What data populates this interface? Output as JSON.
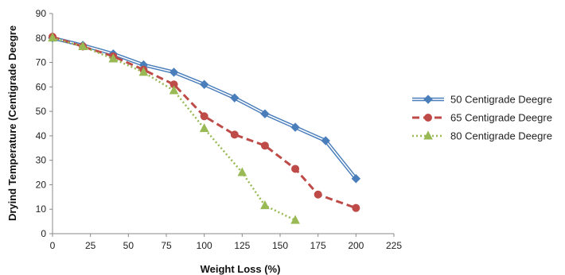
{
  "chart_data": {
    "type": "line",
    "title": "",
    "xlabel": "Weight Loss (%)",
    "ylabel": "Dryind Temperature (Centigrade Deegre",
    "xlim": [
      0,
      225
    ],
    "ylim": [
      0,
      90
    ],
    "xticks": [
      "0",
      "25",
      "50",
      "75",
      "100",
      "125",
      "150",
      "175",
      "200",
      "225"
    ],
    "yticks": [
      "0",
      "10",
      "20",
      "30",
      "40",
      "50",
      "60",
      "70",
      "80",
      "90"
    ],
    "grid": false,
    "legend_position": "right",
    "series": [
      {
        "name": "50 Centigrade Deegre",
        "color": "#4a7ebb",
        "marker": "diamond",
        "line_style": "double",
        "x": [
          0,
          20,
          40,
          60,
          80,
          100,
          120,
          140,
          160,
          180,
          200
        ],
        "y": [
          80,
          77,
          73.5,
          69,
          66,
          61,
          55.5,
          49,
          43.5,
          38,
          22.5
        ]
      },
      {
        "name": "65 Centigrade Deegre",
        "color": "#be4b48",
        "marker": "circle",
        "line_style": "dashed",
        "x": [
          0,
          20,
          40,
          60,
          80,
          100,
          120,
          140,
          160,
          175,
          200
        ],
        "y": [
          80.5,
          76.5,
          72.5,
          67,
          61,
          48,
          40.5,
          36,
          26.5,
          16,
          10.5
        ]
      },
      {
        "name": "80 Centigrade Deegre",
        "color": "#98b954",
        "marker": "triangle",
        "line_style": "dotted",
        "x": [
          0,
          20,
          40,
          60,
          80,
          100,
          125,
          140,
          160
        ],
        "y": [
          80,
          76.5,
          71.5,
          66,
          58.5,
          43,
          25,
          11.5,
          5.5
        ]
      }
    ]
  }
}
